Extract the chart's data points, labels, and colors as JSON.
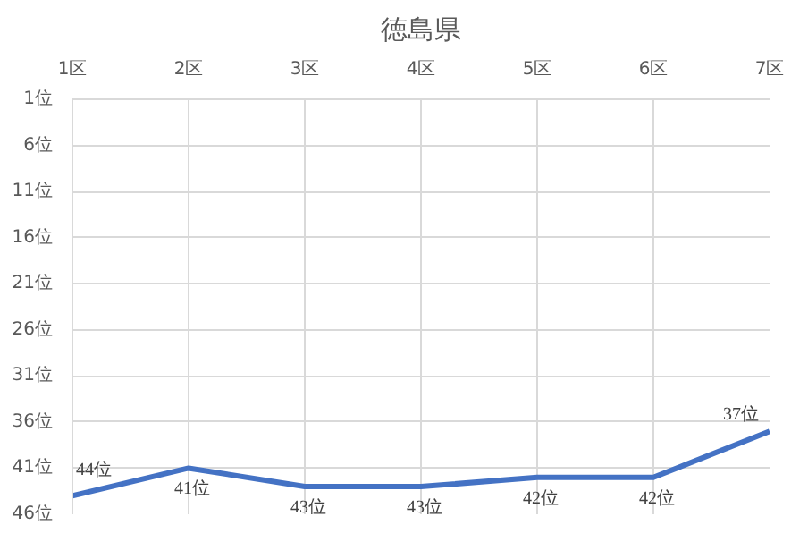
{
  "chart_data": {
    "type": "line",
    "title": "徳島県",
    "categories": [
      "1区",
      "2区",
      "3区",
      "4区",
      "5区",
      "6区",
      "7区"
    ],
    "series": [
      {
        "color": "#4472c4",
        "values": [
          44,
          41,
          43,
          43,
          42,
          42,
          37
        ],
        "value_labels": [
          "44位",
          "41位",
          "43位",
          "43位",
          "42位",
          "42位",
          "37位"
        ]
      }
    ],
    "ylim": [
      46,
      1
    ],
    "yticks": [
      {
        "value": 1,
        "label": "1位"
      },
      {
        "value": 6,
        "label": "6位"
      },
      {
        "value": 11,
        "label": "11位"
      },
      {
        "value": 16,
        "label": "16位"
      },
      {
        "value": 21,
        "label": "21位"
      },
      {
        "value": 26,
        "label": "26位"
      },
      {
        "value": 31,
        "label": "31位"
      },
      {
        "value": 36,
        "label": "36位"
      },
      {
        "value": 41,
        "label": "41位"
      },
      {
        "value": 46,
        "label": "46位"
      }
    ],
    "grid": true,
    "marker": "none",
    "line_style": "solid"
  }
}
